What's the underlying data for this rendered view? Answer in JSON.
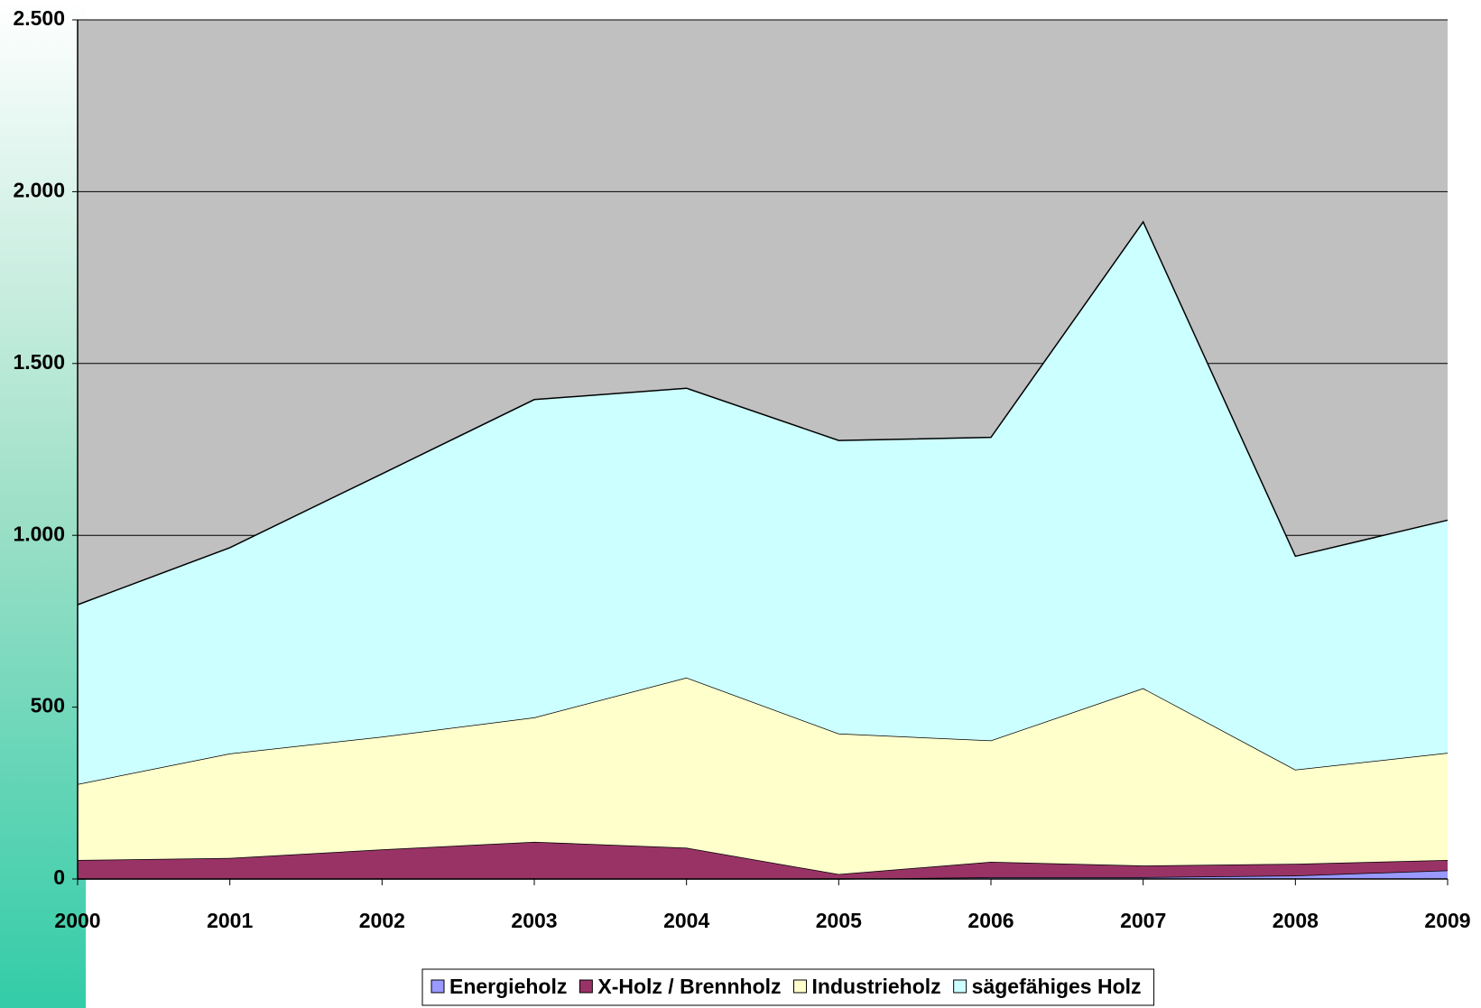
{
  "chart_data": {
    "type": "stacked_area",
    "categories": [
      "2000",
      "2001",
      "2002",
      "2003",
      "2004",
      "2005",
      "2006",
      "2007",
      "2008",
      "2009"
    ],
    "series": [
      {
        "name": "Energieholz",
        "color": "#9999ff",
        "values": [
          0,
          0,
          0,
          0,
          0,
          0,
          5,
          5,
          10,
          25
        ]
      },
      {
        "name": "X-Holz / Brennholz",
        "color": "#993366",
        "values": [
          55,
          61,
          86,
          108,
          91,
          14,
          45,
          34,
          34,
          30
        ]
      },
      {
        "name": "Industrieholz",
        "color": "#ffffcc",
        "values": [
          221,
          304,
          328,
          362,
          495,
          409,
          353,
          516,
          274,
          312
        ]
      },
      {
        "name": "sägefähiges Holz",
        "color": "#ccffff",
        "values": [
          522,
          599,
          765,
          925,
          842,
          853,
          882,
          1357,
          621,
          677
        ]
      }
    ],
    "ylim": [
      0,
      2500
    ],
    "yticks": [
      0,
      500,
      {
        "value": 1000,
        "label": "1.000"
      },
      {
        "value": 1500,
        "label": "1.500"
      },
      {
        "value": 2000,
        "label": "2.000"
      },
      {
        "value": 2500,
        "label": "2.500"
      }
    ],
    "grid": true,
    "legend": "bottom",
    "plot_background": "#c0c0c0"
  }
}
